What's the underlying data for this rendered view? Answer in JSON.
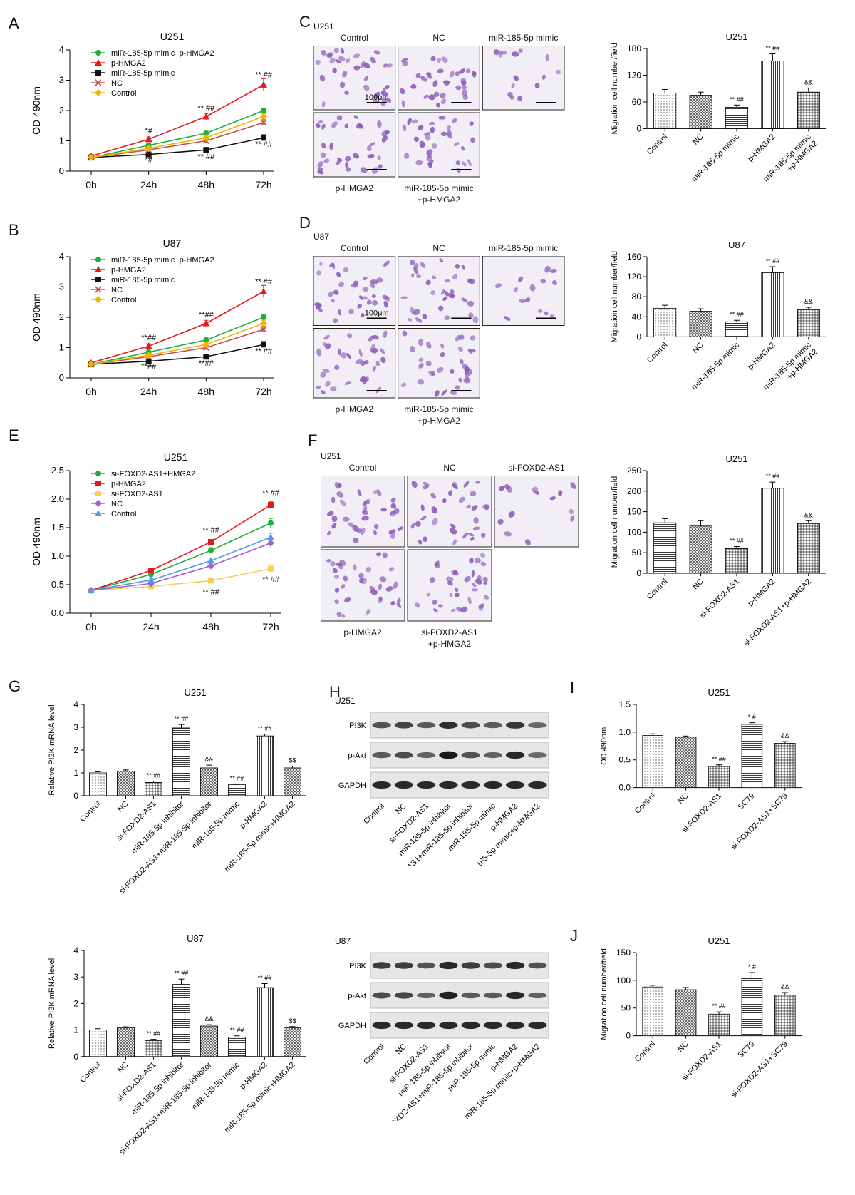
{
  "colors": {
    "green": "#1fae3a",
    "red": "#e31a1c",
    "black": "#111111",
    "brown": "#c0504d",
    "yellow": "#f2b400",
    "paleyellow": "#f5cf58",
    "purple": "#a65fd1",
    "blue": "#4a9ee6",
    "stain": "#8a58b8"
  },
  "panel_letters": [
    "A",
    "B",
    "C",
    "D",
    "E",
    "F",
    "G",
    "H",
    "I",
    "J"
  ],
  "micro_panels": [
    {
      "id": "C",
      "cell": "U251",
      "labels": [
        "Control",
        "NC",
        "miR-185-5p mimic",
        "p-HMGA2",
        "miR-185-5p mimic",
        "+p-HMGA2"
      ],
      "scale_bar": "100μm"
    },
    {
      "id": "D",
      "cell": "U87",
      "labels": [
        "Control",
        "NC",
        "miR-185-5p mimic",
        "p-HMGA2",
        "miR-185-5p mimic",
        "+p-HMGA2"
      ],
      "scale_bar": "100μm"
    },
    {
      "id": "F",
      "cell": "U251",
      "labels": [
        "Control",
        "NC",
        "si-FOXD2-AS1",
        "p-HMGA2",
        "si-FOXD2-AS1",
        "+p-HMGA2"
      ],
      "scale_bar": ""
    }
  ],
  "blots": [
    {
      "id": "H1",
      "cell": "U251",
      "rows": [
        "PI3K",
        "p-Akt",
        "GAPDH"
      ],
      "lanes": [
        "Control",
        "NC",
        "si-FOXD2-AS1",
        "miR-185-5p inhibitor",
        "si-FOXD2-AS1+miR-185-5p inhibitor",
        "miR-185-5p mimic",
        "p-HMGA2",
        "miR-185-5p mimic+p-HMGA2"
      ],
      "intensity": [
        [
          0.55,
          0.65,
          0.5,
          0.8,
          0.6,
          0.5,
          0.75,
          0.4
        ],
        [
          0.5,
          0.6,
          0.45,
          0.95,
          0.55,
          0.45,
          0.85,
          0.4
        ],
        [
          0.85,
          0.85,
          0.85,
          0.85,
          0.85,
          0.85,
          0.85,
          0.85
        ]
      ]
    },
    {
      "id": "H2",
      "cell": "U87",
      "rows": [
        "PI3K",
        "p-Akt",
        "GAPDH"
      ],
      "lanes": [
        "Control",
        "NC",
        "si-FOXD2-AS1",
        "miR-185-5p inhibitor",
        "si-FOXD2-AS1+miR-185-5p inhibitor",
        "miR-185-5p mimic",
        "p-HMGA2",
        "miR-185-5p mimic+p-HMGA2"
      ],
      "intensity": [
        [
          0.7,
          0.7,
          0.55,
          0.85,
          0.7,
          0.6,
          0.85,
          0.55
        ],
        [
          0.6,
          0.65,
          0.45,
          0.9,
          0.5,
          0.5,
          0.85,
          0.45
        ],
        [
          0.85,
          0.85,
          0.85,
          0.85,
          0.85,
          0.85,
          0.85,
          0.85
        ]
      ]
    }
  ],
  "chart_data": [
    {
      "id": "A",
      "type": "line",
      "title": "U251",
      "ylabel": "OD 490nm",
      "xlabel": "",
      "categories": [
        "0h",
        "24h",
        "48h",
        "72h"
      ],
      "ylim": [
        0,
        4
      ],
      "yticks": [
        0,
        1,
        2,
        3,
        4
      ],
      "series": [
        {
          "name": "miR-185-5p mimic+p-HMGA2",
          "color": "green",
          "marker": "circle",
          "values": [
            0.45,
            0.85,
            1.25,
            2.0
          ],
          "err": [
            0.05,
            0.06,
            0.07,
            0.08
          ]
        },
        {
          "name": "p-HMGA2",
          "color": "red",
          "marker": "triangle",
          "values": [
            0.5,
            1.05,
            1.8,
            2.85
          ],
          "err": [
            0.05,
            0.08,
            0.1,
            0.2
          ]
        },
        {
          "name": "miR-185-5p mimic",
          "color": "black",
          "marker": "square",
          "values": [
            0.45,
            0.55,
            0.7,
            1.1
          ],
          "err": [
            0.05,
            0.05,
            0.08,
            0.1
          ]
        },
        {
          "name": "NC",
          "color": "brown",
          "marker": "x",
          "values": [
            0.45,
            0.7,
            1.0,
            1.6
          ],
          "err": [
            0.05,
            0.06,
            0.07,
            0.1
          ]
        },
        {
          "name": "Control",
          "color": "yellow",
          "marker": "diamond",
          "values": [
            0.45,
            0.75,
            1.1,
            1.8
          ],
          "err": [
            0.05,
            0.06,
            0.07,
            0.1
          ]
        }
      ],
      "annotations": [
        {
          "text": "*#",
          "x": 1,
          "y": 1.25
        },
        {
          "text": "*#",
          "x": 1,
          "y": 0.3
        },
        {
          "text": "** ##",
          "x": 2,
          "y": 2.0
        },
        {
          "text": "** ##",
          "x": 2,
          "y": 0.4
        },
        {
          "text": "** ##",
          "x": 3,
          "y": 3.1
        },
        {
          "text": "** ##",
          "x": 3,
          "y": 0.8
        }
      ]
    },
    {
      "id": "B",
      "type": "line",
      "title": "U87",
      "ylabel": "OD 490nm",
      "xlabel": "",
      "categories": [
        "0h",
        "24h",
        "48h",
        "72h"
      ],
      "ylim": [
        0,
        4
      ],
      "yticks": [
        0,
        1,
        2,
        3,
        4
      ],
      "series": [
        {
          "name": "miR-185-5p mimic+p-HMGA2",
          "color": "green",
          "marker": "circle",
          "values": [
            0.45,
            0.85,
            1.25,
            2.0
          ],
          "err": [
            0.05,
            0.06,
            0.07,
            0.08
          ]
        },
        {
          "name": "p-HMGA2",
          "color": "red",
          "marker": "triangle",
          "values": [
            0.5,
            1.05,
            1.8,
            2.85
          ],
          "err": [
            0.05,
            0.08,
            0.1,
            0.2
          ]
        },
        {
          "name": "miR-185-5p mimic",
          "color": "black",
          "marker": "square",
          "values": [
            0.45,
            0.55,
            0.7,
            1.1
          ],
          "err": [
            0.05,
            0.05,
            0.08,
            0.1
          ]
        },
        {
          "name": "NC",
          "color": "brown",
          "marker": "x",
          "values": [
            0.45,
            0.7,
            1.0,
            1.6
          ],
          "err": [
            0.05,
            0.06,
            0.07,
            0.1
          ]
        },
        {
          "name": "Control",
          "color": "yellow",
          "marker": "diamond",
          "values": [
            0.45,
            0.75,
            1.1,
            1.8
          ],
          "err": [
            0.05,
            0.06,
            0.07,
            0.1
          ]
        }
      ],
      "annotations": [
        {
          "text": "**##",
          "x": 1,
          "y": 1.25
        },
        {
          "text": "**##",
          "x": 1,
          "y": 0.3
        },
        {
          "text": "**##",
          "x": 2,
          "y": 2.0
        },
        {
          "text": "**##",
          "x": 2,
          "y": 0.4
        },
        {
          "text": "** ##",
          "x": 3,
          "y": 3.1
        },
        {
          "text": "** ##",
          "x": 3,
          "y": 0.8
        }
      ]
    },
    {
      "id": "E",
      "type": "line",
      "title": "U251",
      "ylabel": "OD 490nm",
      "xlabel": "",
      "categories": [
        "0h",
        "24h",
        "48h",
        "72h"
      ],
      "ylim": [
        0,
        2.5
      ],
      "yticks": [
        "0.0",
        "0.5",
        "1.0",
        "1.5",
        "2.0",
        "2.5"
      ],
      "series": [
        {
          "name": "si-FOXD2-AS1+HMGA2",
          "color": "green",
          "marker": "circle",
          "values": [
            0.4,
            0.68,
            1.1,
            1.58
          ],
          "err": [
            0.02,
            0.04,
            0.05,
            0.08
          ]
        },
        {
          "name": "p-HMGA2",
          "color": "red",
          "marker": "square",
          "values": [
            0.4,
            0.75,
            1.25,
            1.9
          ],
          "err": [
            0.02,
            0.03,
            0.04,
            0.06
          ]
        },
        {
          "name": "si-FOXD2-AS1",
          "color": "paleyellow",
          "marker": "square",
          "values": [
            0.4,
            0.47,
            0.57,
            0.78
          ],
          "err": [
            0.02,
            0.03,
            0.05,
            0.07
          ]
        },
        {
          "name": "NC",
          "color": "purple",
          "marker": "diamond",
          "values": [
            0.4,
            0.52,
            0.83,
            1.23
          ],
          "err": [
            0.02,
            0.03,
            0.05,
            0.07
          ]
        },
        {
          "name": "Control",
          "color": "blue",
          "marker": "triangle",
          "values": [
            0.4,
            0.58,
            0.92,
            1.33
          ],
          "err": [
            0.02,
            0.03,
            0.05,
            0.07
          ]
        }
      ],
      "annotations": [
        {
          "text": "** ##",
          "x": 2,
          "y": 1.42
        },
        {
          "text": "** ##",
          "x": 2,
          "y": 0.33
        },
        {
          "text": "** ##",
          "x": 3,
          "y": 2.07
        },
        {
          "text": "** ##",
          "x": 3,
          "y": 0.55
        }
      ]
    },
    {
      "id": "C_bar",
      "type": "bar",
      "title": "U251",
      "ylabel": "Migration cell number/field",
      "xlabel": "",
      "categories": [
        "Control",
        "NC",
        "miR-185-5p mimic",
        "p-HMGA2",
        "miR-185-5p mimic\n+p-HMGA2"
      ],
      "values": [
        80,
        75,
        48,
        152,
        82
      ],
      "err": [
        8,
        7,
        5,
        16,
        9
      ],
      "ylim": [
        0,
        180
      ],
      "yticks": [
        0,
        60,
        120,
        180
      ],
      "sig": [
        "",
        "",
        "** ##",
        "** ##",
        "&&"
      ],
      "patterns": [
        "dots",
        "grid",
        "hlines",
        "vlines",
        "crosshatch"
      ]
    },
    {
      "id": "D_bar",
      "type": "bar",
      "title": "U87",
      "ylabel": "Migration cell number/field",
      "xlabel": "",
      "categories": [
        "Control",
        "NC",
        "miR-185-5p mimic",
        "p-HMGA2",
        "miR-185-5p mimic\n+p-HMGA2"
      ],
      "values": [
        57,
        51,
        30,
        128,
        54
      ],
      "err": [
        6,
        5,
        3,
        12,
        5
      ],
      "ylim": [
        0,
        160
      ],
      "yticks": [
        0,
        40,
        80,
        120,
        160
      ],
      "sig": [
        "",
        "",
        "** ##",
        "** ##",
        "&&"
      ],
      "patterns": [
        "dots",
        "grid",
        "hlines",
        "vlines",
        "crosshatch"
      ]
    },
    {
      "id": "F_bar",
      "type": "bar",
      "title": "U251",
      "ylabel": "Migration cell number/field",
      "xlabel": "",
      "categories": [
        "Control",
        "NC",
        "si-FOXD2-AS1",
        "p-HMGA2",
        "si-FOXD2-AS1+p-HMGA2"
      ],
      "values": [
        123,
        115,
        60,
        207,
        121
      ],
      "err": [
        10,
        13,
        5,
        15,
        7
      ],
      "ylim": [
        0,
        250
      ],
      "yticks": [
        0,
        50,
        100,
        150,
        200,
        250
      ],
      "sig": [
        "",
        "",
        "** ##",
        "** ##",
        "&&"
      ],
      "patterns": [
        "hlines",
        "grid",
        "crosshatch",
        "vlines",
        "crosshatch"
      ]
    },
    {
      "id": "G1",
      "type": "bar",
      "title": "U251",
      "ylabel": "Relative PI3K mRNA level",
      "xlabel": "",
      "categories": [
        "Control",
        "NC",
        "si-FOXD2-AS1",
        "miR-185-5p inhibitor",
        "si-FOXD2-AS1+miR-185-5p inhibitor",
        "miR-185-5p mimic",
        "p-HMGA2",
        "miR-185-5p mimic+HMGA2"
      ],
      "values": [
        1.0,
        1.08,
        0.58,
        2.97,
        1.22,
        0.48,
        2.62,
        1.22
      ],
      "err": [
        0.05,
        0.05,
        0.06,
        0.15,
        0.12,
        0.03,
        0.08,
        0.08
      ],
      "ylim": [
        0,
        4
      ],
      "yticks": [
        0,
        1,
        2,
        3,
        4
      ],
      "sig": [
        "",
        "",
        "** ##",
        "** ##",
        "&&",
        "** ##",
        "** ##",
        "$$"
      ],
      "patterns": [
        "dots",
        "grid",
        "crosshatch",
        "hlines",
        "grid",
        "hlines",
        "vlines",
        "grid"
      ]
    },
    {
      "id": "G2",
      "type": "bar",
      "title": "U87",
      "ylabel": "Relative PI3K mRNA level",
      "xlabel": "",
      "categories": [
        "Control",
        "NC",
        "si-FOXD2-AS1",
        "miR-185-5p inhibitor",
        "si-FOXD2-AS1+miR-185-5p inhibitor",
        "miR-185-5p mimic",
        "p-HMGA2",
        "miR-185-5p mimic+HMGA2"
      ],
      "values": [
        1.0,
        1.08,
        0.6,
        2.72,
        1.15,
        0.73,
        2.6,
        1.08
      ],
      "err": [
        0.05,
        0.04,
        0.05,
        0.2,
        0.05,
        0.05,
        0.15,
        0.05
      ],
      "ylim": [
        0,
        4
      ],
      "yticks": [
        0,
        1,
        2,
        3,
        4
      ],
      "sig": [
        "",
        "",
        "** ##",
        "** ##",
        "&&",
        "** ##",
        "** ##",
        "$$"
      ],
      "patterns": [
        "dots",
        "grid",
        "crosshatch",
        "hlines",
        "grid",
        "hlines",
        "vlines",
        "grid"
      ]
    },
    {
      "id": "I",
      "type": "bar",
      "title": "U251",
      "ylabel": "OD 490nm",
      "xlabel": "",
      "categories": [
        "Control",
        "NC",
        "si-FOXD2-AS1",
        "SC79",
        "si-FOXD2-AS1+SC79"
      ],
      "values": [
        0.94,
        0.91,
        0.38,
        1.14,
        0.8
      ],
      "err": [
        0.03,
        0.02,
        0.03,
        0.03,
        0.03
      ],
      "ylim": [
        0,
        1.5
      ],
      "yticks": [
        "0.0",
        "0.5",
        "1.0",
        "1.5"
      ],
      "sig": [
        "",
        "",
        "** ##",
        "* #",
        "&&"
      ],
      "patterns": [
        "dots",
        "grid",
        "crosshatch",
        "hlines",
        "crosshatch"
      ]
    },
    {
      "id": "J",
      "type": "bar",
      "title": "U251",
      "ylabel": "Migration cell number/field",
      "xlabel": "",
      "categories": [
        "Control",
        "NC",
        "si-FOXD2-AS1",
        "SC79",
        "si-FOXD2-AS1+SC79"
      ],
      "values": [
        88,
        83,
        39,
        103,
        73
      ],
      "err": [
        3,
        4,
        4,
        11,
        5
      ],
      "ylim": [
        0,
        150
      ],
      "yticks": [
        0,
        50,
        100,
        150
      ],
      "sig": [
        "",
        "",
        "** ##",
        "* #",
        "&&"
      ],
      "patterns": [
        "dots",
        "grid",
        "crosshatch",
        "hlines",
        "crosshatch"
      ]
    }
  ]
}
